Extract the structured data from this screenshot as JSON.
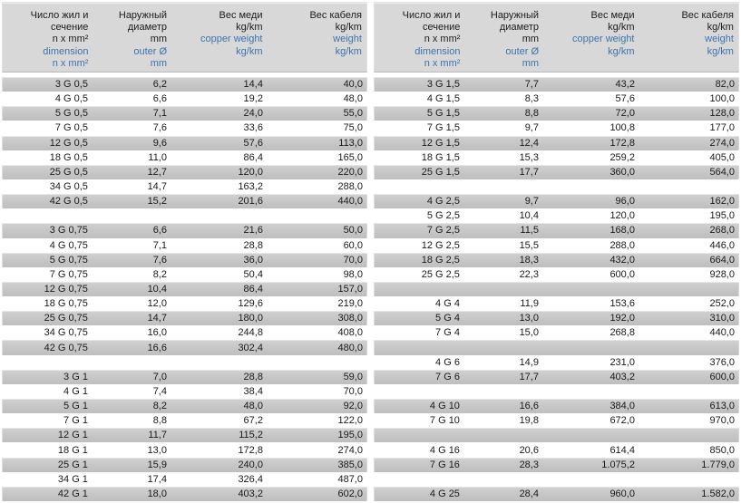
{
  "colors": {
    "accent_blue": "#3e73ab",
    "header_bg": "#d8d8d8",
    "stripe_gray": "#c6c6c6",
    "text_black": "#1a1a1a"
  },
  "columns": [
    {
      "ru_lines": [
        "Число жил и",
        "сечение",
        "n x mm²"
      ],
      "en_lines": [
        "dimension",
        "n x mm²"
      ]
    },
    {
      "ru_lines": [
        "Наружный",
        "диаметр",
        "mm"
      ],
      "en_lines": [
        "outer Ø",
        "mm"
      ]
    },
    {
      "ru_lines": [
        "Вес меди",
        "kg/km"
      ],
      "en_lines": [
        "copper weight",
        "kg/km"
      ]
    },
    {
      "ru_lines": [
        "Вес кабеля",
        "kg/km"
      ],
      "en_lines": [
        "weight",
        "kg/km"
      ]
    }
  ],
  "tables": [
    {
      "slots": [
        [
          "3 G 0,5",
          "6,2",
          "14,4",
          "40,0"
        ],
        [
          "4 G 0,5",
          "6,6",
          "19,2",
          "48,0"
        ],
        [
          "5 G 0,5",
          "7,1",
          "24,0",
          "55,0"
        ],
        [
          "7 G 0,5",
          "7,6",
          "33,6",
          "75,0"
        ],
        [
          "12 G 0,5",
          "9,6",
          "57,6",
          "113,0"
        ],
        [
          "18 G 0,5",
          "11,0",
          "86,4",
          "165,0"
        ],
        [
          "25 G 0,5",
          "12,7",
          "120,0",
          "220,0"
        ],
        [
          "34 G 0,5",
          "14,7",
          "163,2",
          "288,0"
        ],
        [
          "42 G 0,5",
          "15,2",
          "201,6",
          "440,0"
        ],
        null,
        [
          "3 G 0,75",
          "6,6",
          "21,6",
          "50,0"
        ],
        [
          "4 G 0,75",
          "7,1",
          "28,8",
          "60,0"
        ],
        [
          "5 G 0,75",
          "7,6",
          "36,0",
          "70,0"
        ],
        [
          "7 G 0,75",
          "8,2",
          "50,4",
          "98,0"
        ],
        [
          "12 G 0,75",
          "10,4",
          "86,4",
          "157,0"
        ],
        [
          "18 G 0,75",
          "12,0",
          "129,6",
          "219,0"
        ],
        [
          "25 G 0,75",
          "14,7",
          "180,0",
          "308,0"
        ],
        [
          "34 G 0,75",
          "16,0",
          "244,8",
          "408,0"
        ],
        [
          "42 G 0,75",
          "16,6",
          "302,4",
          "480,0"
        ],
        null,
        [
          "3 G 1",
          "7,0",
          "28,8",
          "59,0"
        ],
        [
          "4 G 1",
          "7,4",
          "38,4",
          "70,0"
        ],
        [
          "5 G 1",
          "8,2",
          "48,0",
          "92,0"
        ],
        [
          "7 G 1",
          "8,8",
          "67,2",
          "122,0"
        ],
        [
          "12 G 1",
          "11,7",
          "115,2",
          "195,0"
        ],
        [
          "18 G 1",
          "13,0",
          "172,8",
          "274,0"
        ],
        [
          "25 G 1",
          "15,9",
          "240,0",
          "385,0"
        ],
        [
          "34 G 1",
          "17,4",
          "326,4",
          "487,0"
        ],
        [
          "42 G 1",
          "18,0",
          "403,2",
          "602,0"
        ]
      ]
    },
    {
      "slots": [
        [
          "3 G 1,5",
          "7,7",
          "43,2",
          "82,0"
        ],
        [
          "4 G 1,5",
          "8,3",
          "57,6",
          "100,0"
        ],
        [
          "5 G 1,5",
          "8,8",
          "72,0",
          "128,0"
        ],
        [
          "7 G 1,5",
          "9,7",
          "100,8",
          "177,0"
        ],
        [
          "12 G 1,5",
          "12,4",
          "172,8",
          "274,0"
        ],
        [
          "18 G 1,5",
          "15,3",
          "259,2",
          "405,0"
        ],
        [
          "25 G 1,5",
          "17,7",
          "360,0",
          "564,0"
        ],
        null,
        [
          "4 G 2,5",
          "9,7",
          "96,0",
          "162,0"
        ],
        [
          "5 G 2,5",
          "10,4",
          "120,0",
          "195,0"
        ],
        [
          "7 G 2,5",
          "11,5",
          "168,0",
          "268,0"
        ],
        [
          "12 G 2,5",
          "15,5",
          "288,0",
          "446,0"
        ],
        [
          "18 G 2,5",
          "18,3",
          "432,0",
          "664,0"
        ],
        [
          "25 G 2,5",
          "22,3",
          "600,0",
          "928,0"
        ],
        null,
        [
          "4 G 4",
          "11,9",
          "153,6",
          "252,0"
        ],
        [
          "5 G 4",
          "13,0",
          "192,0",
          "310,0"
        ],
        [
          "7 G 4",
          "15,0",
          "268,8",
          "440,0"
        ],
        null,
        [
          "4 G 6",
          "14,9",
          "231,0",
          "376,0"
        ],
        [
          "7 G 6",
          "17,7",
          "403,2",
          "600,0"
        ],
        null,
        [
          "4 G 10",
          "16,6",
          "384,0",
          "613,0"
        ],
        [
          "7 G 10",
          "19,8",
          "672,0",
          "970,0"
        ],
        null,
        [
          "4 G 16",
          "20,6",
          "614,4",
          "850,0"
        ],
        [
          "7 G 16",
          "28,3",
          "1.075,2",
          "1.779,0"
        ],
        null,
        [
          "4 G 25",
          "28,4",
          "960,0",
          "1.582,0"
        ]
      ]
    }
  ]
}
